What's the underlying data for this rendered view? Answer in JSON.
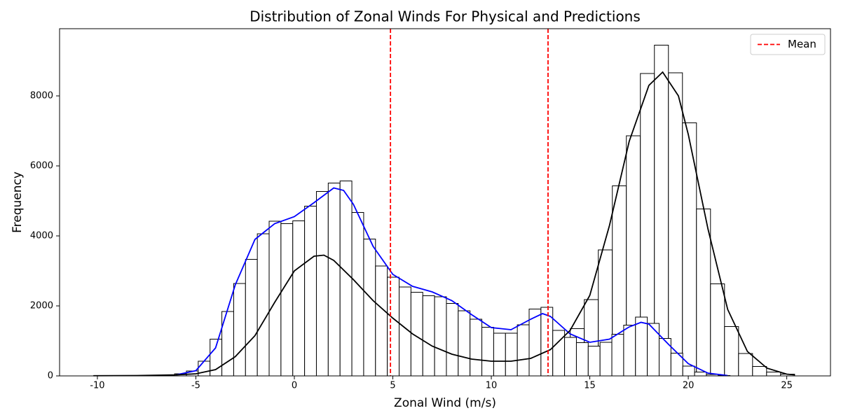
{
  "chart_data": {
    "type": "histogram",
    "title": "Distribution of Zonal Winds For Physical and Predictions",
    "xlabel": "Zonal Wind (m/s)",
    "ylabel": "Frequency",
    "xlim": [
      -11.92,
      27.22
    ],
    "ylim": [
      0,
      9920
    ],
    "xticks": [
      -10,
      -5,
      0,
      5,
      10,
      15,
      20,
      25
    ],
    "yticks": [
      0,
      2000,
      4000,
      6000,
      8000
    ],
    "legend": "upper right",
    "histograms": [
      {
        "edgecolor": "#000000",
        "fill": "#ffffff",
        "bins": [
          -10.2,
          -9.488,
          -8.776,
          -8.064,
          -7.352,
          -6.64,
          -5.928,
          -5.216,
          -4.504,
          -3.792,
          -3.08,
          -2.368,
          -1.656,
          -0.944,
          -0.232,
          0.48,
          1.192,
          1.904,
          2.616,
          3.328,
          4.04,
          4.752,
          5.464,
          6.176,
          6.888,
          7.6,
          8.312,
          9.024,
          9.736,
          10.448,
          11.16,
          11.872,
          12.584,
          13.296,
          14.008,
          14.72,
          15.432,
          16.144,
          16.856,
          17.568,
          18.28,
          18.992,
          19.704,
          20.416,
          21.128,
          21.84,
          22.552,
          23.264,
          23.976,
          24.688,
          25.4
        ],
        "values": [
          5,
          5,
          10,
          10,
          15,
          20,
          40,
          80,
          140,
          370,
          650,
          1020,
          1560,
          2370,
          3110,
          3510,
          3680,
          3320,
          2630,
          2540,
          1970,
          1680,
          1390,
          1100,
          780,
          620,
          490,
          400,
          380,
          450,
          350,
          460,
          540,
          800,
          1350,
          2180,
          3600,
          5430,
          6860,
          8640,
          9450,
          8660,
          7230,
          4770,
          2630,
          1410,
          640,
          270,
          110,
          50
        ]
      },
      {
        "edgecolor": "#000000",
        "fill": "#ffffff",
        "bins": [
          -6.08,
          -5.48,
          -4.88,
          -4.28,
          -3.68,
          -3.08,
          -2.48,
          -1.88,
          -1.28,
          -0.68,
          -0.08,
          0.52,
          1.12,
          1.72,
          2.32,
          2.92,
          3.52,
          4.12,
          4.72,
          5.32,
          5.92,
          6.52,
          7.12,
          7.72,
          8.32,
          8.92,
          9.52,
          10.12,
          10.72,
          11.32,
          11.92,
          12.52,
          13.12,
          13.72,
          14.32,
          14.92,
          15.52,
          16.12,
          16.72,
          17.32,
          17.92,
          18.52,
          19.12,
          19.72,
          20.32,
          20.92,
          21.52,
          22.12
        ],
        "values": [
          60,
          140,
          420,
          1050,
          1840,
          2640,
          3330,
          4060,
          4420,
          4350,
          4430,
          4850,
          5270,
          5510,
          5570,
          4670,
          3910,
          3140,
          2820,
          2540,
          2390,
          2290,
          2260,
          2070,
          1860,
          1620,
          1390,
          1220,
          1220,
          1460,
          1910,
          1960,
          1300,
          1100,
          950,
          850,
          960,
          1190,
          1450,
          1680,
          1500,
          1070,
          650,
          280,
          110,
          40,
          10
        ]
      }
    ],
    "kde": [
      {
        "color": "#0000ff",
        "x": [
          -6,
          -5,
          -4,
          -3,
          -2,
          -1,
          0,
          1,
          2,
          2.5,
          3,
          4,
          5,
          6,
          7,
          8,
          9,
          10,
          11,
          12,
          12.6,
          13,
          14,
          15,
          16,
          17,
          17.6,
          18,
          19,
          20,
          21,
          22
        ],
        "values": [
          30,
          150,
          800,
          2600,
          3900,
          4350,
          4550,
          4950,
          5370,
          5300,
          4900,
          3700,
          2900,
          2560,
          2400,
          2150,
          1750,
          1380,
          1320,
          1620,
          1780,
          1700,
          1200,
          960,
          1050,
          1400,
          1530,
          1480,
          900,
          350,
          80,
          10
        ]
      },
      {
        "color": "#000000",
        "x": [
          -10.2,
          -8,
          -6,
          -5,
          -4,
          -3,
          -2,
          -1,
          0,
          1,
          1.5,
          2,
          3,
          4,
          5,
          6,
          7,
          8,
          9,
          10,
          11,
          12,
          13,
          14,
          15,
          16,
          17,
          18,
          18.7,
          19.5,
          20,
          21,
          22,
          23,
          24,
          25,
          25.4
        ],
        "values": [
          5,
          10,
          30,
          60,
          180,
          550,
          1150,
          2100,
          3000,
          3420,
          3450,
          3300,
          2750,
          2150,
          1650,
          1200,
          850,
          620,
          480,
          420,
          420,
          500,
          750,
          1300,
          2300,
          4300,
          6700,
          8300,
          8680,
          8000,
          6900,
          4200,
          1900,
          700,
          220,
          50,
          30
        ]
      }
    ],
    "mean_lines": {
      "name": "Mean",
      "color": "#ff0000",
      "values": [
        4.88,
        12.88
      ]
    }
  }
}
